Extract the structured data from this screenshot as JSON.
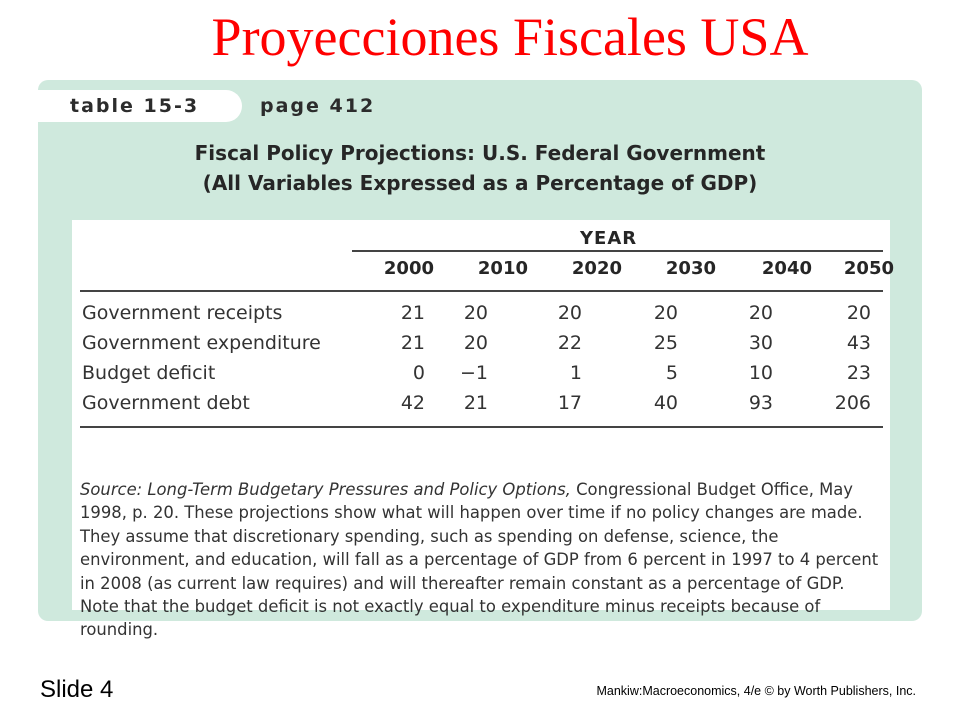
{
  "slide": {
    "title": "Proyecciones Fiscales USA",
    "number_label": "Slide 4",
    "credit": "Mankiw:Macroeconomics, 4/e © by Worth Publishers, Inc."
  },
  "panel": {
    "tab_label": "table 15-3",
    "page_label": "page 412",
    "title_line1": "Fiscal Policy Projections: U.S. Federal Government",
    "title_line2": "(All Variables Expressed as a Percentage of GDP)",
    "colors": {
      "panel_bg": "#cfe9dd",
      "title": "#ff0000"
    }
  },
  "table": {
    "group_header": "YEAR",
    "columns": [
      "2000",
      "2010",
      "2020",
      "2030",
      "2040",
      "2050"
    ],
    "rows": [
      {
        "label": "Government receipts",
        "values": [
          "21",
          "20",
          "20",
          "20",
          "20",
          "20"
        ]
      },
      {
        "label": "Government expenditure",
        "values": [
          "21",
          "20",
          "22",
          "25",
          "30",
          "43"
        ]
      },
      {
        "label": "Budget deficit",
        "values": [
          "0",
          "−1",
          "1",
          "5",
          "10",
          "23"
        ]
      },
      {
        "label": "Government debt",
        "values": [
          "42",
          "21",
          "17",
          "40",
          "93",
          "206"
        ]
      }
    ]
  },
  "source": {
    "prefix": "Source: ",
    "italic_title": "Long-Term Budgetary Pressures and Policy Options,",
    "body": " Congressional Budget Office, May 1998, p. 20. These projections show what will happen over time if no policy changes are made. They assume that discretionary spending, such as spending on defense, science, the environment, and education, will fall as a percentage of GDP from 6 percent in 1997 to 4 percent in 2008 (as current law requires) and will thereafter remain constant as a percentage of GDP. Note that the budget deficit is not exactly equal to expenditure minus receipts because of rounding."
  }
}
